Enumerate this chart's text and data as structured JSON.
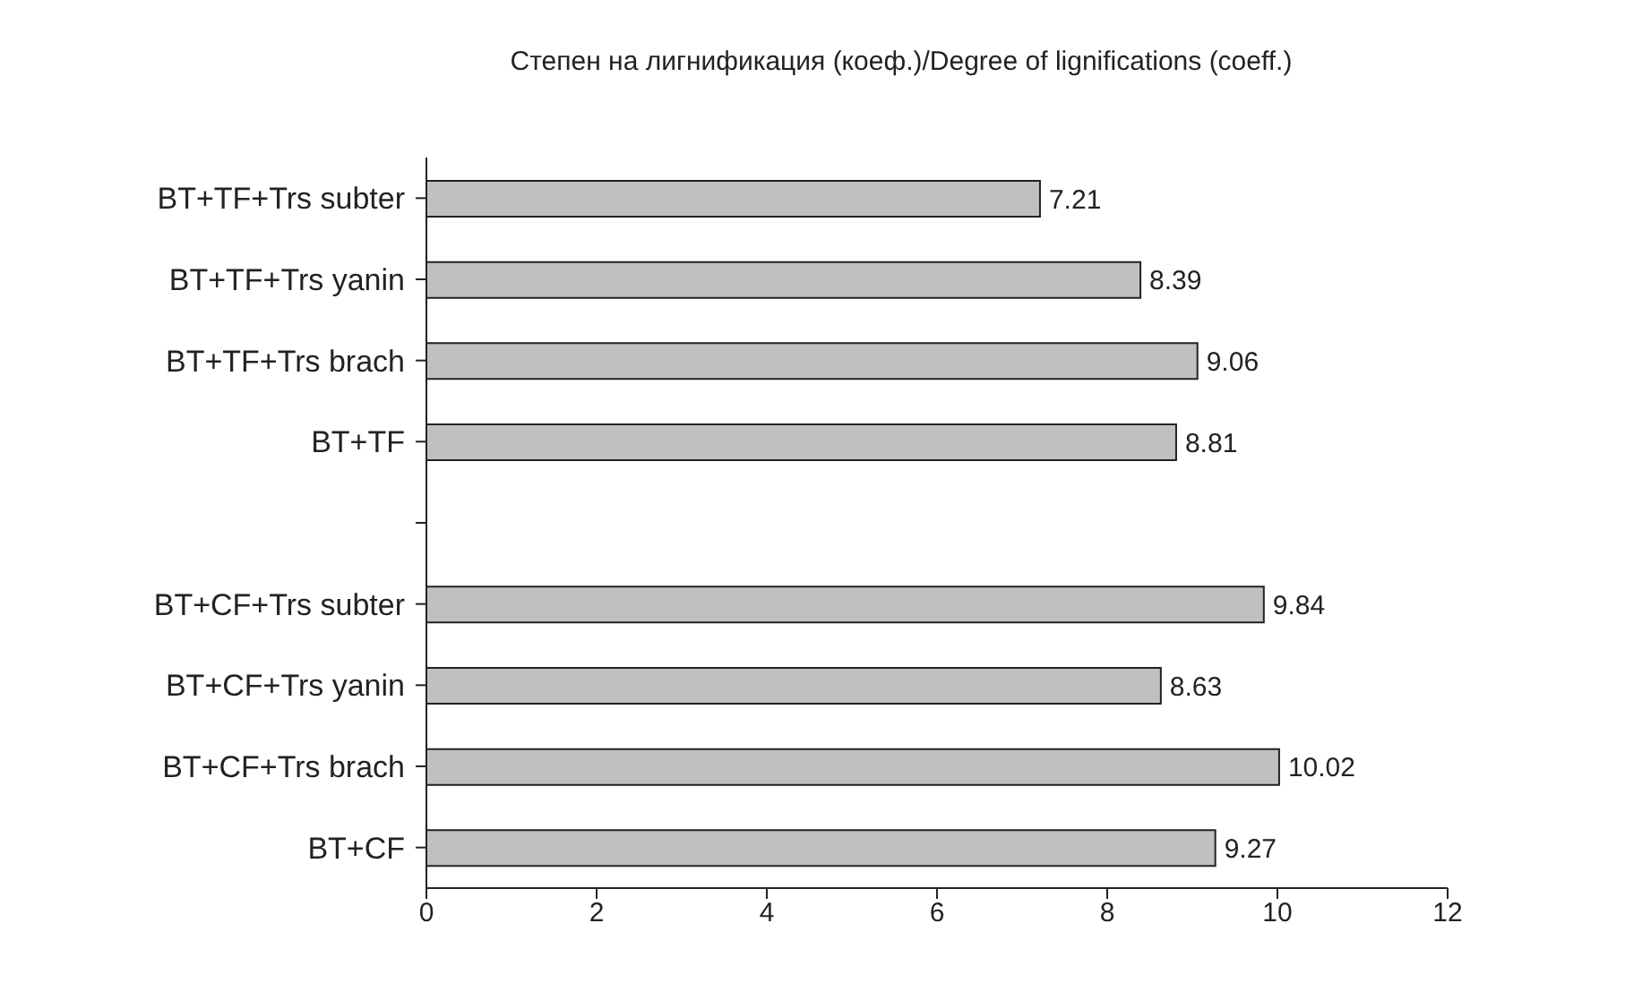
{
  "chart_data": {
    "type": "bar",
    "orientation": "horizontal",
    "title": "Степен на лигнификация (коеф.)/Degree of lignifications (coeff.)",
    "categories": [
      "BT+TF+Trs subter",
      "BT+TF+Trs yanin",
      "BT+TF+Trs brach",
      "BT+TF",
      null,
      "BT+CF+Trs subter",
      "BT+CF+Trs yanin",
      "BT+CF+Trs brach",
      "BT+CF"
    ],
    "values": [
      7.21,
      8.39,
      9.06,
      8.81,
      null,
      9.84,
      8.63,
      10.02,
      9.27
    ],
    "color": "#c0c0c0",
    "xlim": [
      0,
      12
    ],
    "xticks": [
      0,
      2,
      4,
      6,
      8,
      10,
      12
    ],
    "data_labels": true,
    "grid": false,
    "legend": false
  }
}
